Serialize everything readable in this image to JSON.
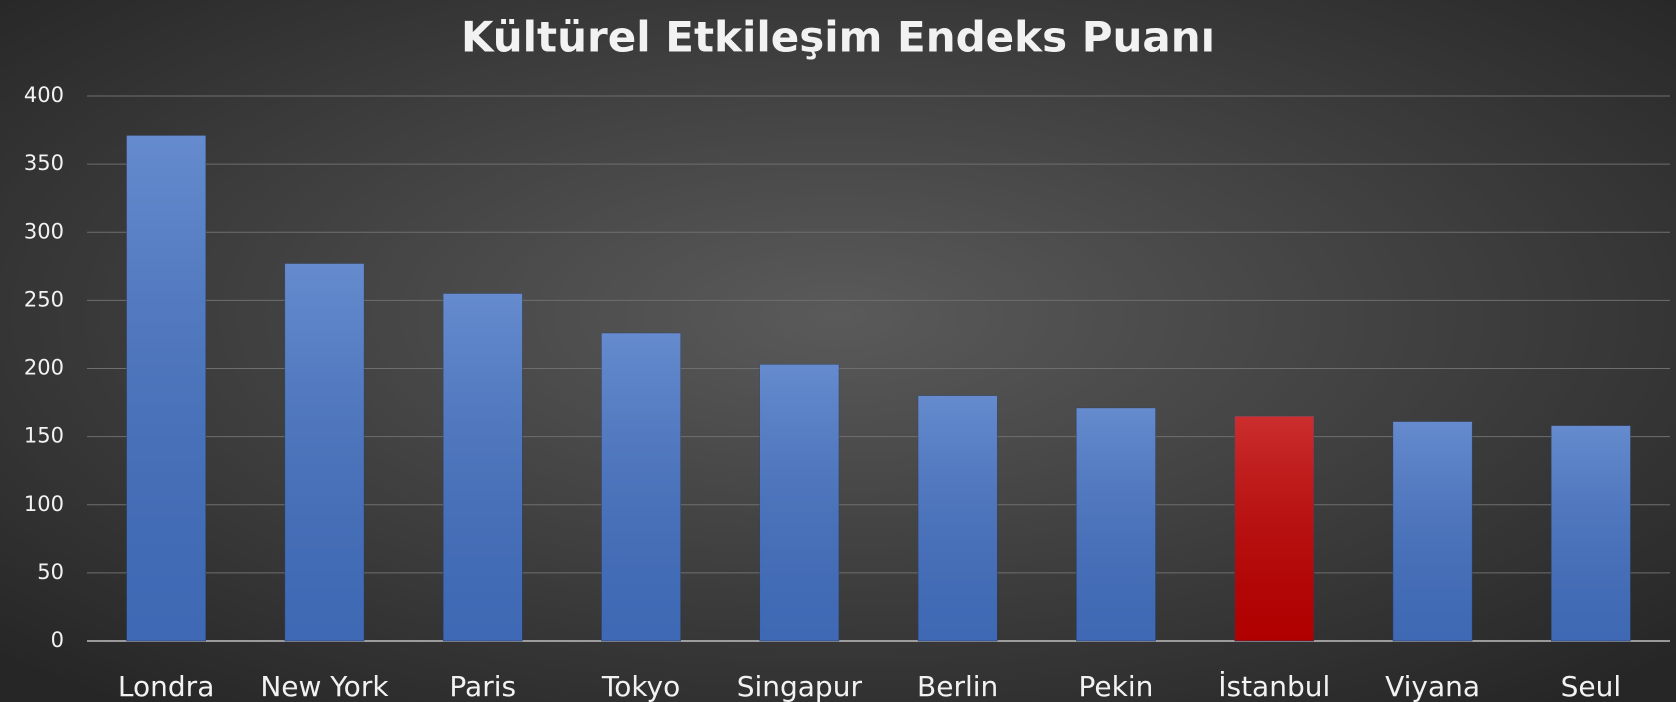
{
  "chart_data": {
    "type": "bar",
    "title": "Kültürel Etkileşim Endeks Puanı",
    "categories": [
      "Londra",
      "New York",
      "Paris",
      "Tokyo",
      "Singapur",
      "Berlin",
      "Pekin",
      "İstanbul",
      "Viyana",
      "Seul"
    ],
    "values": [
      371,
      277,
      255,
      226,
      203,
      180,
      171,
      165,
      161,
      158
    ],
    "colors": [
      "#4472c4",
      "#4472c4",
      "#4472c4",
      "#4472c4",
      "#4472c4",
      "#4472c4",
      "#4472c4",
      "#c00000",
      "#4472c4",
      "#4472c4"
    ],
    "ylim": [
      0,
      400
    ],
    "yticks": [
      0,
      50,
      100,
      150,
      200,
      250,
      300,
      350,
      400
    ],
    "grid": true
  }
}
